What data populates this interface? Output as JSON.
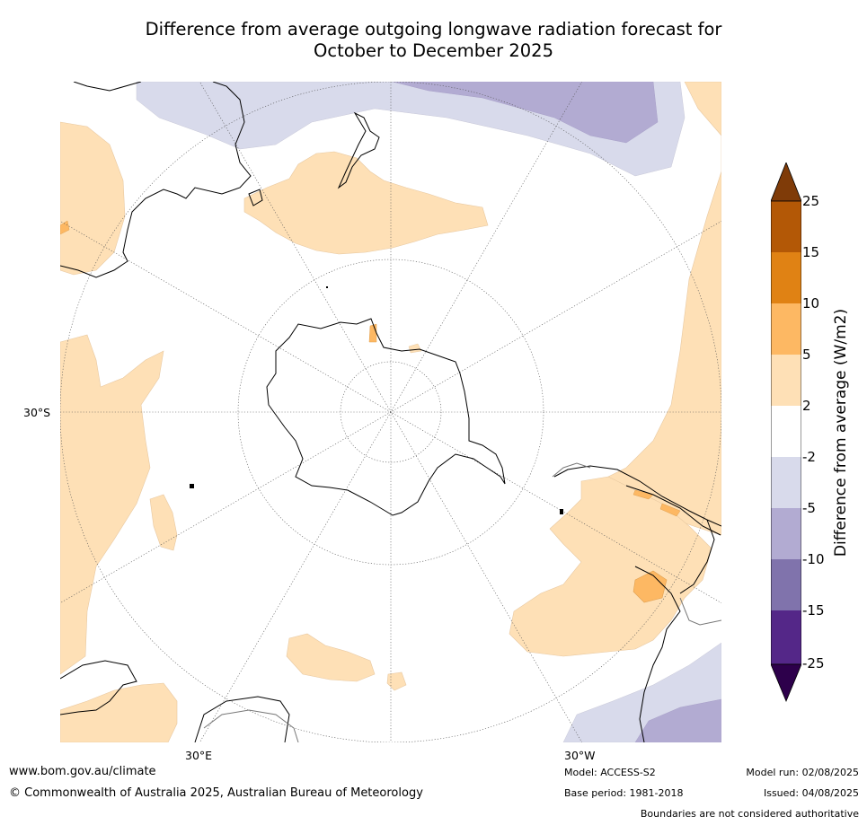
{
  "title": {
    "line1": "Difference from average outgoing longwave radiation forecast for",
    "line2": "October to December 2025"
  },
  "map": {
    "projection": "south-polar-stereographic",
    "lat_label": "30°S",
    "lon_labels": {
      "left": "30°E",
      "right": "30°W"
    },
    "regions": [
      {
        "name": "new-zealand-region",
        "category": "2 to 5"
      },
      {
        "name": "south-america-region",
        "category": "2 to 5"
      },
      {
        "name": "argentina-hotspot",
        "category": "5 to 10"
      },
      {
        "name": "africa-west-region",
        "category": "2 to 5"
      },
      {
        "name": "south-atlantic-region",
        "category": "2 to 5"
      },
      {
        "name": "indian-ocean-region",
        "category": "2 to 5"
      },
      {
        "name": "pacific-north-band",
        "category": "-5 to -2"
      },
      {
        "name": "pacific-north-darker",
        "category": "-10 to -5"
      },
      {
        "name": "south-atlantic-north-band",
        "category": "-5 to -2"
      },
      {
        "name": "south-atlantic-north-darker",
        "category": "-10 to -5"
      }
    ]
  },
  "colorbar": {
    "title": "Difference from average (W/m2)",
    "ticks": [
      "25",
      "15",
      "10",
      "5",
      "2",
      "-2",
      "-5",
      "-10",
      "-15",
      "-25"
    ],
    "colors": {
      "over": "#7f3b08",
      "15_to_25": "#b35806",
      "10_to_15": "#e08214",
      "5_to_10": "#fdb863",
      "2_to_5": "#fee0b6",
      "neutral": "#ffffff",
      "-5_to_-2": "#d8daeb",
      "-10_to_-5": "#b2abd2",
      "-15_to_-10": "#8073ac",
      "-25_to_-15": "#542788",
      "under": "#2d004b"
    }
  },
  "footer": {
    "website": "www.bom.gov.au/climate",
    "copyright": "© Commonwealth of Australia 2025, Australian Bureau of Meteorology",
    "model": "Model: ACCESS-S2",
    "base_period": "Base period: 1981-2018",
    "model_run": "Model run: 02/08/2025",
    "issued": "Issued: 04/08/2025",
    "disclaimer": "Boundaries are not considered authoritative"
  }
}
